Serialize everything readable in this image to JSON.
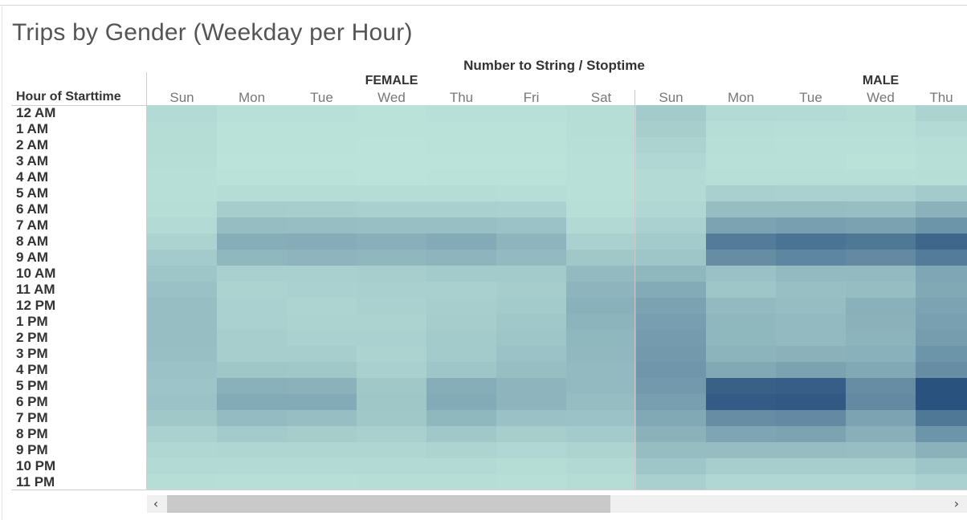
{
  "title": "Trips by Gender (Weekday per Hour)",
  "columns_field": "Number to String / Stoptime",
  "rows_field": "Hour of Starttime",
  "scroll_left_glyph": "‹",
  "scroll_right_glyph": "›",
  "chart_data": {
    "type": "heatmap",
    "title": "Trips by Gender (Weekday per Hour)",
    "column_field": "Number to String / Stoptime",
    "row_field": "Hour of Starttime",
    "genders": [
      "FEMALE",
      "MALE"
    ],
    "days": [
      "Sun",
      "Mon",
      "Tue",
      "Wed",
      "Thu",
      "Fri",
      "Sat"
    ],
    "hours": [
      "12 AM",
      "1 AM",
      "2 AM",
      "3 AM",
      "4 AM",
      "5 AM",
      "6 AM",
      "7 AM",
      "8 AM",
      "9 AM",
      "10 AM",
      "11 AM",
      "12 PM",
      "1 PM",
      "2 PM",
      "3 PM",
      "4 PM",
      "5 PM",
      "6 PM",
      "7 PM",
      "8 PM",
      "9 PM",
      "10 PM",
      "11 PM"
    ],
    "visible_day_columns": {
      "FEMALE": 7,
      "MALE": 5
    },
    "value_scale": "relative trip volume (0 = lightest, 100 = darkest)",
    "color_range": [
      "#bfe6dc",
      "#2a527f"
    ],
    "values": {
      "FEMALE": [
        [
          8,
          4,
          4,
          3,
          4,
          4,
          6
        ],
        [
          7,
          3,
          3,
          3,
          3,
          3,
          6
        ],
        [
          7,
          3,
          3,
          2,
          3,
          3,
          5
        ],
        [
          6,
          2,
          2,
          2,
          2,
          2,
          4
        ],
        [
          5,
          3,
          3,
          2,
          3,
          3,
          4
        ],
        [
          5,
          7,
          7,
          7,
          7,
          6,
          4
        ],
        [
          6,
          17,
          16,
          15,
          15,
          14,
          5
        ],
        [
          8,
          28,
          27,
          26,
          26,
          24,
          9
        ],
        [
          13,
          38,
          39,
          37,
          40,
          33,
          14
        ],
        [
          18,
          32,
          33,
          32,
          33,
          30,
          20
        ],
        [
          22,
          15,
          15,
          16,
          18,
          18,
          30
        ],
        [
          25,
          13,
          14,
          15,
          15,
          17,
          33
        ],
        [
          27,
          14,
          12,
          14,
          16,
          18,
          36
        ],
        [
          27,
          14,
          13,
          13,
          17,
          20,
          34
        ],
        [
          27,
          16,
          14,
          14,
          18,
          22,
          32
        ],
        [
          26,
          16,
          16,
          13,
          18,
          24,
          31
        ],
        [
          24,
          21,
          20,
          15,
          22,
          27,
          30
        ],
        [
          23,
          36,
          35,
          20,
          38,
          33,
          30
        ],
        [
          24,
          40,
          40,
          21,
          40,
          33,
          28
        ],
        [
          20,
          29,
          27,
          20,
          32,
          25,
          24
        ],
        [
          14,
          18,
          17,
          15,
          20,
          16,
          18
        ],
        [
          10,
          11,
          11,
          11,
          12,
          10,
          12
        ],
        [
          8,
          8,
          8,
          8,
          8,
          7,
          9
        ],
        [
          6,
          5,
          5,
          6,
          6,
          5,
          7
        ]
      ],
      "MALE": [
        [
          18,
          8,
          8,
          7,
          13
        ],
        [
          16,
          6,
          5,
          5,
          8
        ],
        [
          13,
          5,
          4,
          4,
          6
        ],
        [
          10,
          4,
          4,
          3,
          5
        ],
        [
          8,
          5,
          5,
          5,
          6
        ],
        [
          8,
          15,
          14,
          14,
          18
        ],
        [
          10,
          28,
          28,
          27,
          35
        ],
        [
          14,
          45,
          48,
          46,
          55
        ],
        [
          18,
          72,
          78,
          75,
          86
        ],
        [
          22,
          60,
          65,
          62,
          72
        ],
        [
          32,
          25,
          30,
          30,
          43
        ],
        [
          40,
          22,
          26,
          28,
          42
        ],
        [
          46,
          30,
          28,
          36,
          45
        ],
        [
          48,
          32,
          30,
          35,
          47
        ],
        [
          50,
          32,
          30,
          34,
          49
        ],
        [
          52,
          34,
          35,
          36,
          55
        ],
        [
          54,
          42,
          46,
          42,
          60
        ],
        [
          52,
          90,
          92,
          60,
          100
        ],
        [
          48,
          94,
          95,
          62,
          100
        ],
        [
          42,
          60,
          62,
          45,
          75
        ],
        [
          35,
          44,
          45,
          37,
          55
        ],
        [
          28,
          28,
          28,
          27,
          35
        ],
        [
          22,
          16,
          16,
          16,
          22
        ],
        [
          15,
          10,
          10,
          10,
          14
        ]
      ]
    }
  }
}
